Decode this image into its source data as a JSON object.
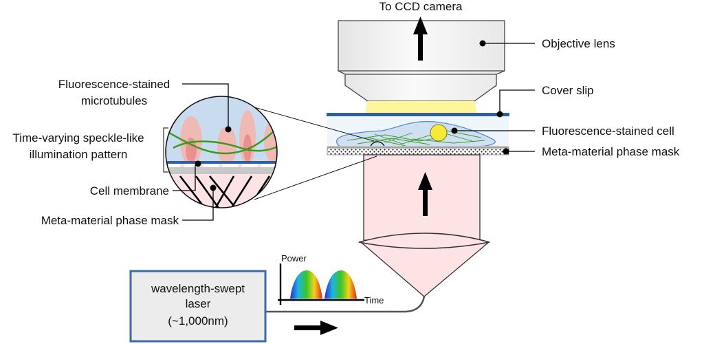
{
  "labels": {
    "ccd": "To CCD camera",
    "objective": "Objective lens",
    "cover_slip": "Cover slip",
    "cell": "Fluorescence-stained cell",
    "mask_right": "Meta-material phase mask",
    "microtubules_l1": "Fluorescence-stained",
    "microtubules_l2": "microtubules",
    "speckle_l1": "Time-varying speckle-like",
    "speckle_l2": "illumination pattern",
    "membrane": "Cell membrane",
    "mask_left": "Meta-material phase mask",
    "laser_l1": "wavelength-swept",
    "laser_l2": "laser",
    "laser_l3": "(~1,000nm)",
    "power": "Power",
    "time": "Time"
  },
  "colors": {
    "beam": "#fde3e3",
    "glass": "#2f5f9e",
    "cell_fill": "#cfe0f3",
    "immersion": "#fff59d",
    "laser_box_border": "#3d6aa8",
    "laser_box_fill": "#ececec",
    "microtubule": "#3a9a1d",
    "nucleus": "#f6e93a"
  },
  "icons": [
    "up-arrow-icon",
    "right-arrow-icon",
    "spectrum-pulse-icon",
    "magnifier-circle-icon"
  ]
}
